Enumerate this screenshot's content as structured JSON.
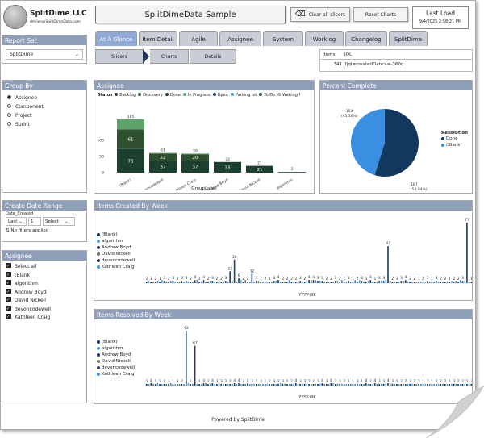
{
  "header": {
    "company": "SplitDime LLC",
    "email": "dmiles@SplitDimeData.com",
    "title": "SplitDimeData Sample",
    "clear_label": "Clear all slicers",
    "reset_label": "Reset Charts",
    "last_load_label": "Last Load",
    "last_load_value": "9/4/2025 2:58:21 PM"
  },
  "tabs": [
    "At A Glance",
    "Item Detail",
    "Agile",
    "Assignee",
    "System",
    "Worklog",
    "Changelog",
    "SplitDime"
  ],
  "subtabs": [
    "Slicers",
    "Charts",
    "Details"
  ],
  "report_set": {
    "label": "Report Set",
    "value": "SplitDime"
  },
  "group_by": {
    "label": "Group By",
    "options": [
      "Assignee",
      "Component",
      "Project",
      "Sprint"
    ]
  },
  "date_range": {
    "label": "Create Date Range",
    "field": "Date_Created",
    "mode": "Last",
    "count": "1",
    "unit": "Select",
    "status": "No filters applied"
  },
  "assignee_filter": {
    "label": "Assignee",
    "items": [
      "Select all",
      "(Blank)",
      "algorithm",
      "Andrew Boyd",
      "David Nickell",
      "devoncodewell",
      "Kathleen Craig"
    ]
  },
  "jql": {
    "col1": "Items",
    "col2": "JQL",
    "items": "341",
    "query": "?jql=createdDate>=-360d"
  },
  "assignee_chart": {
    "title": "Assignee",
    "status_label": "Status",
    "statuses": [
      "Backlog",
      "Discovery",
      "Done",
      "In Progress",
      "Open",
      "Parking lot",
      "To Do",
      "Waiting f"
    ],
    "xlabel": "GroupLabel"
  },
  "percent_complete": {
    "title": "Percent Complete",
    "legend_title": "Resolution",
    "legend": [
      "Done",
      "(Blank)"
    ]
  },
  "created_chart": {
    "title": "Items Created By Week",
    "xlabel": "YYYY-WK",
    "legend": [
      "(Blank)",
      "algorithm",
      "Andrew Boyd",
      "David Nickell",
      "devoncodewell",
      "Kathleen Craig"
    ]
  },
  "resolved_chart": {
    "title": "Items Resolved By Week",
    "xlabel": "YYYY-WK",
    "legend": [
      "(Blank)",
      "algorithm",
      "Andrew Boyd",
      "David Nickell",
      "devoncodewell",
      "Kathleen Craig"
    ]
  },
  "footer": {
    "text": "Powered by SplitDime"
  },
  "colors": {
    "dark": "#1f3864",
    "navy": "#12385f",
    "mid": "#2e75b6",
    "light": "#4fa3e0",
    "green": "#5ea36a",
    "header": "#8f9fb8"
  },
  "chart_data": [
    {
      "type": "bar",
      "title": "Assignee",
      "categories": [
        "(Blank)",
        "devoncodewell",
        "Kathleen Craig",
        "Andrew Boyd",
        "David Nickell",
        "algorithm"
      ],
      "series": [
        {
          "name": "Done",
          "values": [
            73,
            37,
            37,
            33,
            21,
            2
          ]
        },
        {
          "name": "To Do",
          "values": [
            61,
            22,
            20,
            0,
            0,
            0
          ]
        }
      ],
      "totals": [
        165,
        61,
        59,
        33,
        21,
        2
      ],
      "xlabel": "GroupLabel",
      "ylim": [
        0,
        180
      ]
    },
    {
      "type": "pie",
      "title": "Percent Complete",
      "slices": [
        {
          "label": "Done",
          "value": 187,
          "percent": "(54.84%)"
        },
        {
          "label": "(Blank)",
          "value": 154,
          "percent": "(45.16%)"
        }
      ]
    },
    {
      "type": "bar",
      "title": "Items Created By Week",
      "xlabel": "YYYY-WK",
      "peak_labels": [
        15,
        30,
        6,
        12,
        47,
        77
      ]
    },
    {
      "type": "bar",
      "title": "Items Resolved By Week",
      "xlabel": "YYYY-WK",
      "peak_labels": [
        92,
        67
      ]
    }
  ]
}
